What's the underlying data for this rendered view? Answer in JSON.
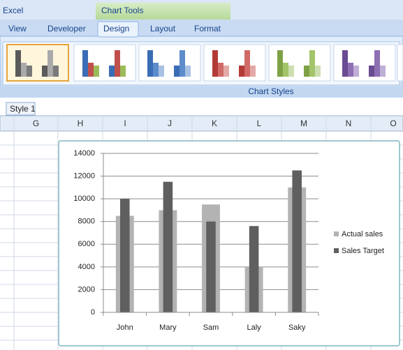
{
  "app": {
    "title": "Excel",
    "contextual_tab": "Chart Tools",
    "tabs": [
      "View",
      "Developer",
      "Design",
      "Layout",
      "Format"
    ],
    "active_tab": 2,
    "group_label": "Chart Styles",
    "tooltip": "Style 1",
    "columns": [
      "G",
      "H",
      "I",
      "J",
      "K",
      "L",
      "M",
      "N",
      "O"
    ]
  },
  "chart_data": {
    "type": "bar",
    "categories": [
      "John",
      "Mary",
      "Sam",
      "Laly",
      "Saky"
    ],
    "series": [
      {
        "name": "Actual sales",
        "color": "#b3b3b3",
        "values": [
          8500,
          9000,
          9500,
          4000,
          11000
        ]
      },
      {
        "name": "Sales Target",
        "color": "#5f5f5f",
        "values": [
          10000,
          11500,
          8000,
          7600,
          12500
        ]
      }
    ],
    "ylim": [
      0,
      14000
    ],
    "yticks": [
      0,
      2000,
      4000,
      6000,
      8000,
      10000,
      12000,
      14000
    ],
    "grid": true,
    "legend": "right"
  }
}
